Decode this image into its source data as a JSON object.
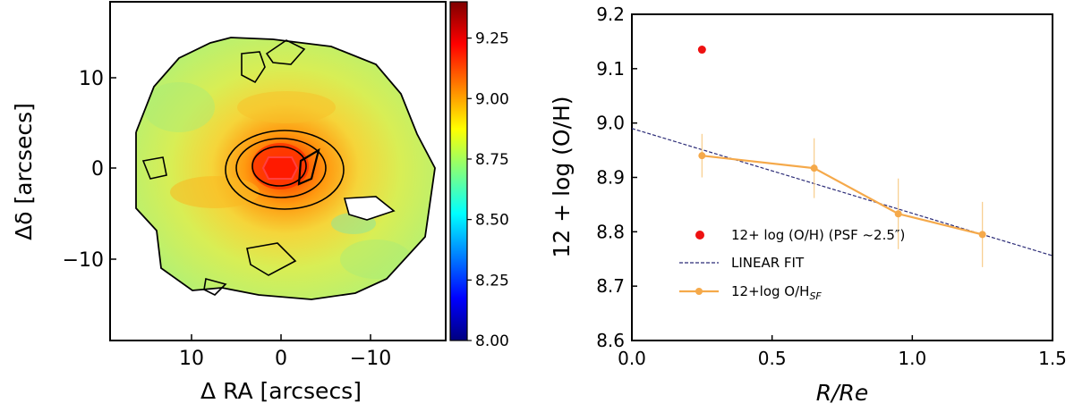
{
  "chart_data": [
    {
      "type": "heatmap",
      "title": "",
      "xlabel": "Δ RA [arcsecs]",
      "ylabel": "Δδ [arcsecs]",
      "xlim": [
        18,
        -17
      ],
      "ylim": [
        -19,
        18
      ],
      "xticks": [
        10,
        0,
        -10
      ],
      "xtick_labels": [
        "10",
        "0",
        "−10"
      ],
      "yticks": [
        10,
        0,
        -10
      ],
      "ytick_labels": [
        "10",
        "0",
        "−10"
      ],
      "colorbar": {
        "colormap": "jet",
        "range": [
          8.0,
          9.4
        ],
        "ticks": [
          8.0,
          8.25,
          8.5,
          8.75,
          9.0,
          9.25
        ],
        "tick_labels": [
          "8.00",
          "8.25",
          "8.50",
          "8.75",
          "9.00",
          "9.25"
        ]
      },
      "map_summary": {
        "center_value": 9.3,
        "outer_value": 8.8,
        "contours": "black, around bright central region"
      }
    },
    {
      "type": "line",
      "title": "",
      "xlabel": "R/Re",
      "ylabel": "12 + log (O/H)",
      "xlim": [
        0.0,
        1.5
      ],
      "ylim": [
        8.6,
        9.2
      ],
      "xticks": [
        0.0,
        0.5,
        1.0,
        1.5
      ],
      "xtick_labels": [
        "0.0",
        "0.5",
        "1.0",
        "1.5"
      ],
      "yticks": [
        8.6,
        8.7,
        8.8,
        8.9,
        9.0,
        9.1,
        9.2
      ],
      "ytick_labels": [
        "8.6",
        "8.7",
        "8.8",
        "8.9",
        "9.0",
        "9.1",
        "9.2"
      ],
      "series": [
        {
          "name": "12+log O/H",
          "name_sub": "SF",
          "kind": "line-errorbar",
          "color": "#f5a94a",
          "x": [
            0.25,
            0.65,
            0.95,
            1.25
          ],
          "y": [
            8.94,
            8.917,
            8.833,
            8.795
          ],
          "yerr": [
            0.04,
            0.055,
            0.065,
            0.06
          ]
        },
        {
          "name": "12+ log  (O/H) (PSF  ~2.5″)",
          "kind": "point",
          "color": "#ee1111",
          "x": [
            0.25
          ],
          "y": [
            9.135
          ]
        },
        {
          "name": "LINEAR FIT",
          "kind": "dashed-line",
          "color": "#2b2b77",
          "slope": -0.156,
          "intercept": 8.99
        }
      ],
      "legend": {
        "position": "center-right",
        "entries": [
          "12+ log  (O/H) (PSF  ~2.5″)",
          "LINEAR FIT",
          "12+log O/H_SF"
        ]
      }
    }
  ]
}
